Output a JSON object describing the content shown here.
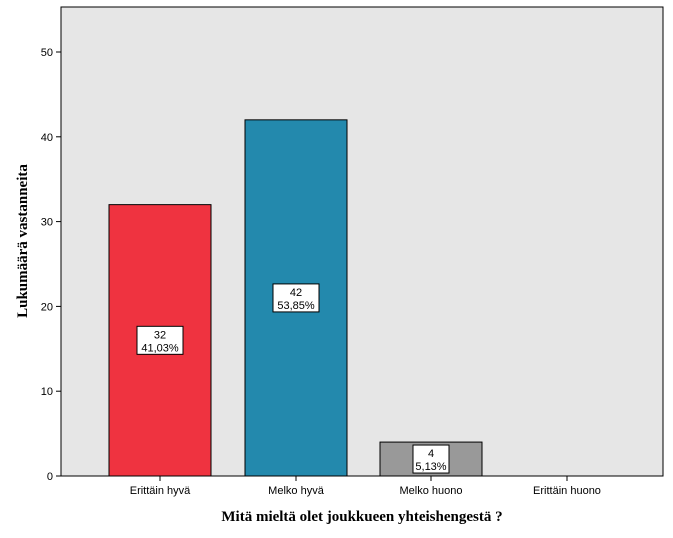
{
  "chart_data": {
    "type": "bar",
    "categories": [
      "Erittäin hyvä",
      "Melko hyvä",
      "Melko huono",
      "Erittäin huono"
    ],
    "values": [
      32,
      42,
      4,
      0
    ],
    "percent_labels": [
      "41,03%",
      "53,85%",
      "5,13%",
      ""
    ],
    "colors": [
      "#ef3340",
      "#2389ad",
      "#999999",
      "#cccccc"
    ],
    "plot_background": "#e6e6e6",
    "xlabel": "Mitä mieltä olet joukkueen yhteishengestä ?",
    "ylabel": "Lukumäärä vastanneita",
    "ylim": [
      0,
      55
    ],
    "yticks": [
      0,
      10,
      20,
      30,
      40,
      50
    ],
    "grid": false,
    "legend": "none"
  }
}
